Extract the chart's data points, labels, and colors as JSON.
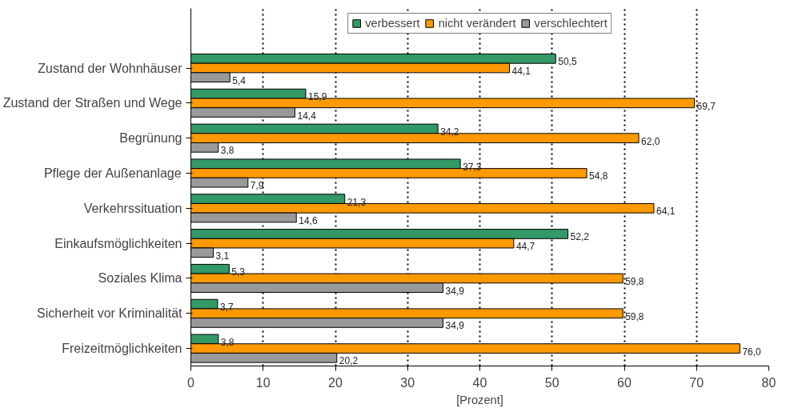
{
  "chart_data": {
    "type": "bar",
    "orientation": "horizontal",
    "xlabel": "[Prozent]",
    "categories": [
      "Zustand der Wohnhäuser",
      "Zustand der Straßen und Wege",
      "Begrünung",
      "Pflege der Außenanlage",
      "Verkehrssituation",
      "Einkaufsmöglichkeiten",
      "Soziales Klima",
      "Sicherheit vor Kriminalität",
      "Freizeitmöglichkeiten"
    ],
    "series": [
      {
        "name": "verbessert",
        "color": "#339966",
        "values": [
          50.5,
          15.9,
          34.2,
          37.3,
          21.3,
          52.2,
          5.3,
          3.7,
          3.8
        ],
        "value_labels": [
          "50,5",
          "15,9",
          "34,2",
          "37,3",
          "21,3",
          "52,2",
          "5,3",
          "3,7",
          "3,8"
        ]
      },
      {
        "name": "nicht verändert",
        "color": "#ff9900",
        "values": [
          44.1,
          69.7,
          62.0,
          54.8,
          64.1,
          44.7,
          59.8,
          59.8,
          76.0
        ],
        "value_labels": [
          "44,1",
          "69,7",
          "62,0",
          "54,8",
          "64,1",
          "44,7",
          "59,8",
          "59,8",
          "76,0"
        ]
      },
      {
        "name": "verschlechtert",
        "color": "#999999",
        "values": [
          5.4,
          14.4,
          3.8,
          7.9,
          14.6,
          3.1,
          34.9,
          34.9,
          20.2
        ],
        "value_labels": [
          "5,4",
          "14,4",
          "3,8",
          "7,9",
          "14,6",
          "3,1",
          "34,9",
          "34,9",
          "20,2"
        ]
      }
    ],
    "xlim": [
      0,
      80
    ],
    "xticks": [
      0,
      10,
      20,
      30,
      40,
      50,
      60,
      70,
      80
    ],
    "grid": "x",
    "legend": "top"
  }
}
